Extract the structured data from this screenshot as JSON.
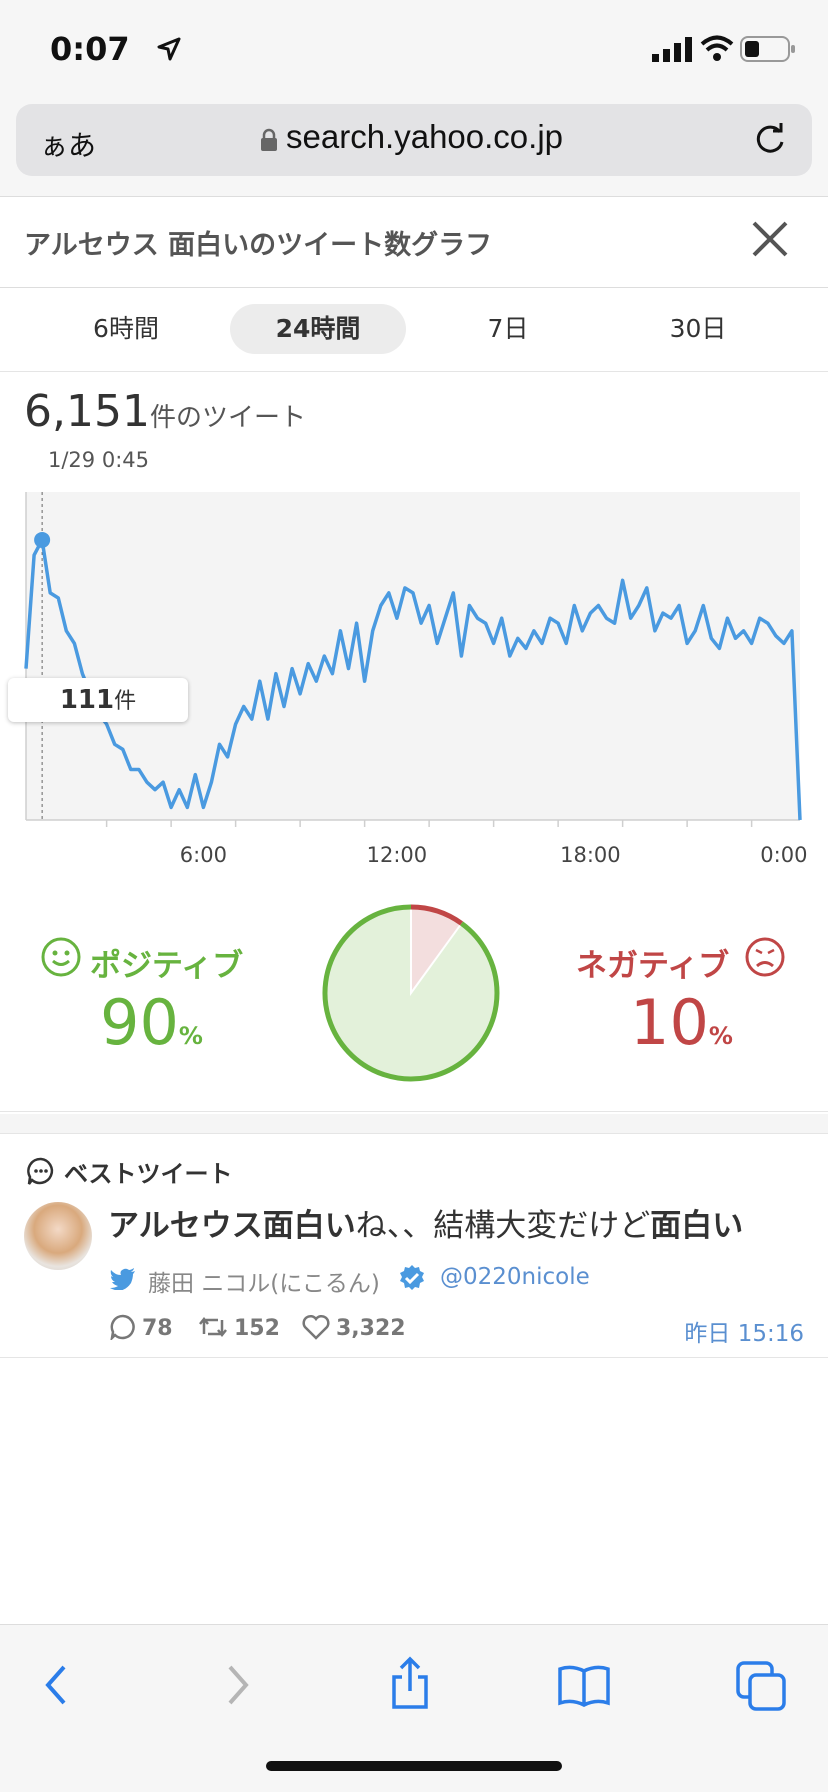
{
  "status": {
    "time": "0:07"
  },
  "browser": {
    "aa": "ぁあ",
    "url": "search.yahoo.co.jp"
  },
  "page": {
    "title": "アルセウス 面白いのツイート数グラフ"
  },
  "tabs": [
    {
      "label": "6時間",
      "active": false
    },
    {
      "label": "24時間",
      "active": true
    },
    {
      "label": "7日",
      "active": false
    },
    {
      "label": "30日",
      "active": false
    }
  ],
  "summary": {
    "count": "6,151",
    "count_unit": "件のツイート",
    "date": "1/29 0:45"
  },
  "chart_data": {
    "type": "line",
    "title": "",
    "xlabel": "",
    "ylabel": "",
    "x_tick_labels": [
      "6:00",
      "12:00",
      "18:00",
      "0:00"
    ],
    "x_tick_hours": [
      6,
      12,
      18,
      24
    ],
    "x_range_hours": [
      0.5,
      24.5
    ],
    "ylim": [
      0,
      130
    ],
    "grid": false,
    "highlight": {
      "x": 1.0,
      "value": 111,
      "label": "111",
      "unit": "件"
    },
    "series": [
      {
        "hours": [
          0.5,
          0.75,
          1.0,
          1.25,
          1.5,
          1.75,
          2.0,
          2.25,
          2.5,
          2.75,
          3.0,
          3.25,
          3.5,
          3.75,
          4.0,
          4.25,
          4.5,
          4.75,
          5.0,
          5.25,
          5.5,
          5.75,
          6.0,
          6.25,
          6.5,
          6.75,
          7.0,
          7.25,
          7.5,
          7.75,
          8.0,
          8.25,
          8.5,
          8.75,
          9.0,
          9.25,
          9.5,
          9.75,
          10.0,
          10.25,
          10.5,
          10.75,
          11.0,
          11.25,
          11.5,
          11.75,
          12.0,
          12.25,
          12.5,
          12.75,
          13.0,
          13.25,
          13.5,
          13.75,
          14.0,
          14.25,
          14.5,
          14.75,
          15.0,
          15.25,
          15.5,
          15.75,
          16.0,
          16.25,
          16.5,
          16.75,
          17.0,
          17.25,
          17.5,
          17.75,
          18.0,
          18.25,
          18.5,
          18.75,
          19.0,
          19.25,
          19.5,
          19.75,
          20.0,
          20.25,
          20.5,
          20.75,
          21.0,
          21.25,
          21.5,
          21.75,
          22.0,
          22.25,
          22.5,
          22.75,
          23.0,
          23.25,
          23.5,
          23.75,
          24.0,
          24.25,
          24.5
        ],
        "values": [
          60,
          105,
          111,
          90,
          88,
          75,
          70,
          58,
          50,
          42,
          38,
          30,
          28,
          20,
          20,
          15,
          12,
          15,
          5,
          12,
          5,
          18,
          5,
          15,
          30,
          25,
          38,
          45,
          40,
          55,
          40,
          58,
          45,
          60,
          50,
          62,
          55,
          65,
          58,
          75,
          60,
          78,
          55,
          75,
          85,
          90,
          80,
          92,
          90,
          78,
          85,
          70,
          80,
          90,
          65,
          85,
          80,
          78,
          70,
          80,
          65,
          72,
          68,
          75,
          70,
          80,
          78,
          70,
          85,
          75,
          82,
          85,
          80,
          78,
          95,
          80,
          85,
          92,
          75,
          82,
          80,
          85,
          70,
          75,
          85,
          72,
          68,
          80,
          72,
          75,
          70,
          80,
          78,
          73,
          70,
          75,
          0
        ]
      }
    ]
  },
  "sentiment": {
    "positive_label": "ポジティブ",
    "positive_value": "90",
    "negative_label": "ネガティブ",
    "negative_value": "10",
    "percent_sign": "%",
    "positive_color": "#67b33f",
    "negative_color": "#c04646"
  },
  "best_tweet": {
    "section_title": "ベストツイート",
    "text_bold_1": "アルセウス面白い",
    "text_mid": "ね、、結構大変だけど",
    "text_bold_2": "面白い",
    "author": "藤田 ニコル(にこるん)",
    "handle": "@0220nicole",
    "replies": "78",
    "retweets": "152",
    "likes": "3,322",
    "posted": "昨日 15:16"
  },
  "colors": {
    "accent": "#4a9ae0",
    "link": "#5a8fd0"
  }
}
